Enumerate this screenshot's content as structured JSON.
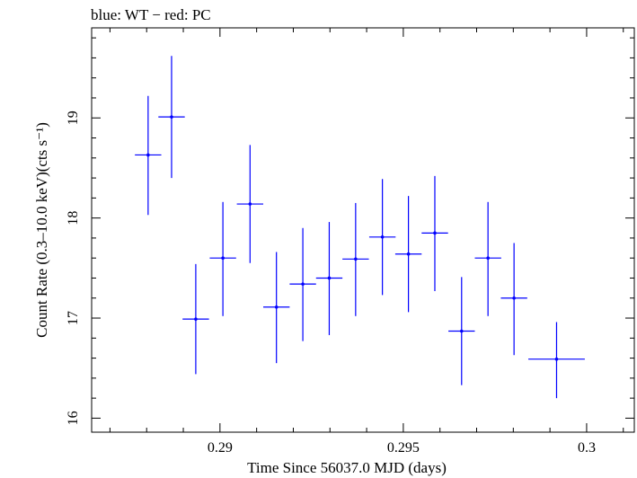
{
  "chart_data": {
    "type": "scatter",
    "title": "blue: WT − red: PC",
    "xlabel": "Time Since 56037.0 MJD (days)",
    "ylabel": "Count Rate (0.3–10.0 keV)(cts s⁻¹)",
    "xlim": [
      0.2865,
      0.3013
    ],
    "ylim": [
      15.86,
      19.9
    ],
    "x_ticks": [
      {
        "value": 0.29,
        "label": "0.29"
      },
      {
        "value": 0.295,
        "label": "0.295"
      },
      {
        "value": 0.3,
        "label": "0.3"
      }
    ],
    "y_ticks": [
      {
        "value": 16,
        "label": "16"
      },
      {
        "value": 17,
        "label": "17"
      },
      {
        "value": 18,
        "label": "18"
      },
      {
        "value": 19,
        "label": "19"
      }
    ],
    "grid": false,
    "series": [
      {
        "color": "#0000ff",
        "points": [
          {
            "x": 0.28804,
            "y": 18.63,
            "xerr": 0.00036,
            "ylo": 18.03,
            "yhi": 19.22
          },
          {
            "x": 0.28868,
            "y": 19.01,
            "xerr": 0.00036,
            "ylo": 18.4,
            "yhi": 19.62
          },
          {
            "x": 0.28934,
            "y": 16.99,
            "xerr": 0.00036,
            "ylo": 16.44,
            "yhi": 17.54
          },
          {
            "x": 0.29008,
            "y": 17.6,
            "xerr": 0.00036,
            "ylo": 17.02,
            "yhi": 18.16
          },
          {
            "x": 0.29082,
            "y": 18.14,
            "xerr": 0.00036,
            "ylo": 17.55,
            "yhi": 18.73
          },
          {
            "x": 0.29154,
            "y": 17.11,
            "xerr": 0.00036,
            "ylo": 16.55,
            "yhi": 17.66
          },
          {
            "x": 0.29226,
            "y": 17.34,
            "xerr": 0.00036,
            "ylo": 16.77,
            "yhi": 17.9
          },
          {
            "x": 0.29298,
            "y": 17.4,
            "xerr": 0.00036,
            "ylo": 16.83,
            "yhi": 17.96
          },
          {
            "x": 0.2937,
            "y": 17.59,
            "xerr": 0.00036,
            "ylo": 17.02,
            "yhi": 18.15
          },
          {
            "x": 0.29443,
            "y": 17.81,
            "xerr": 0.00036,
            "ylo": 17.23,
            "yhi": 18.39
          },
          {
            "x": 0.29514,
            "y": 17.64,
            "xerr": 0.00036,
            "ylo": 17.06,
            "yhi": 18.22
          },
          {
            "x": 0.29586,
            "y": 17.85,
            "xerr": 0.00036,
            "ylo": 17.27,
            "yhi": 18.42
          },
          {
            "x": 0.29659,
            "y": 16.87,
            "xerr": 0.00036,
            "ylo": 16.33,
            "yhi": 17.41
          },
          {
            "x": 0.29731,
            "y": 17.6,
            "xerr": 0.00036,
            "ylo": 17.02,
            "yhi": 18.16
          },
          {
            "x": 0.29802,
            "y": 17.2,
            "xerr": 0.00036,
            "ylo": 16.63,
            "yhi": 17.75
          },
          {
            "x": 0.29918,
            "y": 16.59,
            "xerr": 0.00077,
            "ylo": 16.2,
            "yhi": 16.96
          }
        ]
      }
    ]
  }
}
